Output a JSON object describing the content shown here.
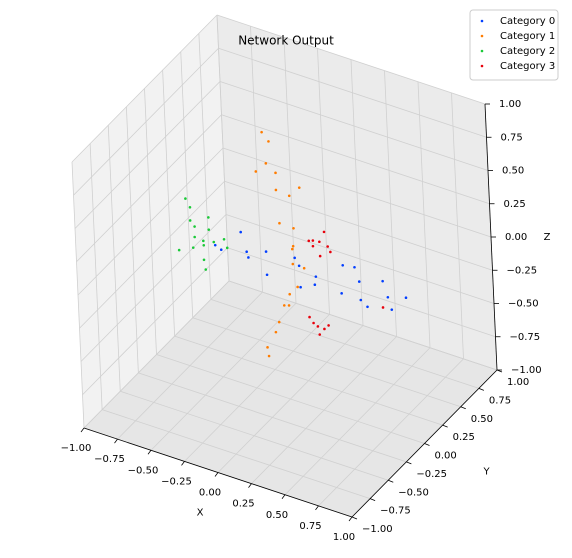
{
  "chart_data": {
    "type": "scatter3d",
    "title": "Network Output",
    "xlabel": "X",
    "ylabel": "Y",
    "zlabel": "Z",
    "xlim": [
      -1,
      1
    ],
    "ylim": [
      -1,
      1
    ],
    "zlim": [
      -1,
      1
    ],
    "xticks": [
      {
        "value": -1,
        "label": "−1.00"
      },
      {
        "value": -0.75,
        "label": "−0.75"
      },
      {
        "value": -0.5,
        "label": "−0.50"
      },
      {
        "value": -0.25,
        "label": "−0.25"
      },
      {
        "value": 0,
        "label": "0.00"
      },
      {
        "value": 0.25,
        "label": "0.25"
      },
      {
        "value": 0.5,
        "label": "0.50"
      },
      {
        "value": 0.75,
        "label": "0.75"
      },
      {
        "value": 1,
        "label": "1.00"
      }
    ],
    "yticks": [
      {
        "value": -1,
        "label": "−1.00"
      },
      {
        "value": -0.75,
        "label": "−0.75"
      },
      {
        "value": -0.5,
        "label": "−0.50"
      },
      {
        "value": -0.25,
        "label": "−0.25"
      },
      {
        "value": 0,
        "label": "0.00"
      },
      {
        "value": 0.25,
        "label": "0.25"
      },
      {
        "value": 0.5,
        "label": "0.50"
      },
      {
        "value": 0.75,
        "label": "0.75"
      },
      {
        "value": 1,
        "label": "1.00"
      }
    ],
    "zticks": [
      {
        "value": -1,
        "label": "−1.00"
      },
      {
        "value": -0.75,
        "label": "−0.75"
      },
      {
        "value": -0.5,
        "label": "−0.50"
      },
      {
        "value": -0.25,
        "label": "−0.25"
      },
      {
        "value": 0,
        "label": "0.00"
      },
      {
        "value": 0.25,
        "label": "0.25"
      },
      {
        "value": 0.5,
        "label": "0.50"
      },
      {
        "value": 0.75,
        "label": "0.75"
      },
      {
        "value": 1,
        "label": "1.00"
      }
    ],
    "grid": true,
    "legend": "upper right",
    "series": [
      {
        "name": "Category 0",
        "color": "#023eff",
        "x": [
          -0.69,
          -0.6,
          -0.5,
          -0.42,
          -0.33,
          -0.25,
          -0.15,
          -0.05,
          0.05,
          0.12,
          0.2,
          0.28,
          0.36,
          0.44,
          0.52,
          0.6,
          0.66,
          0.72,
          -0.55,
          0.0,
          0.3,
          0.5
        ],
        "y": [
          0.3,
          0.22,
          0.38,
          0.26,
          0.34,
          0.2,
          0.4,
          0.28,
          0.32,
          0.18,
          0.42,
          0.25,
          0.35,
          0.22,
          0.38,
          0.3,
          0.24,
          0.33,
          0.4,
          0.2,
          0.4,
          0.2
        ],
        "z": [
          -0.24,
          -0.2,
          -0.27,
          -0.22,
          -0.19,
          -0.26,
          -0.21,
          -0.17,
          -0.24,
          -0.2,
          -0.16,
          -0.25,
          -0.19,
          -0.23,
          -0.15,
          -0.2,
          -0.24,
          -0.18,
          -0.15,
          -0.27,
          -0.13,
          -0.25
        ]
      },
      {
        "name": "Category 1",
        "color": "#ff7c00",
        "x": [
          -0.3,
          -0.28,
          -0.25,
          -0.22,
          -0.2,
          -0.17,
          -0.15,
          -0.12,
          -0.1,
          -0.08,
          -0.07,
          -0.08,
          -0.13,
          -0.18,
          -0.22,
          -0.26,
          -0.3,
          -0.32,
          -0.12,
          -0.05,
          -0.2,
          -0.3
        ],
        "y": [
          0.3,
          0.35,
          0.25,
          0.32,
          0.28,
          0.4,
          0.22,
          0.35,
          0.3,
          0.25,
          0.38,
          0.3,
          0.2,
          0.35,
          0.28,
          0.3,
          0.25,
          0.3,
          0.45,
          0.2,
          0.4,
          0.2
        ],
        "z": [
          0.74,
          0.65,
          0.55,
          0.45,
          0.35,
          0.25,
          0.15,
          0.05,
          -0.05,
          -0.15,
          -0.25,
          -0.35,
          -0.45,
          -0.55,
          -0.65,
          -0.75,
          -0.85,
          -0.95,
          0.3,
          0.0,
          -0.5,
          0.5
        ]
      },
      {
        "name": "Category 2",
        "color": "#1ac938",
        "x": [
          -0.9,
          -0.88,
          -0.86,
          -0.84,
          -0.82,
          -0.8,
          -0.78,
          -0.77,
          -0.85,
          -0.8,
          -0.75,
          -0.7,
          -0.65,
          -0.6,
          -0.82,
          -0.79
        ],
        "y": [
          0.3,
          0.32,
          0.28,
          0.3,
          0.26,
          0.34,
          0.3,
          0.3,
          0.1,
          0.2,
          0.25,
          0.3,
          0.35,
          0.3,
          0.45,
          0.4
        ],
        "z": [
          0.04,
          -0.03,
          -0.1,
          -0.15,
          -0.2,
          -0.3,
          -0.38,
          -0.45,
          -0.22,
          -0.24,
          -0.2,
          -0.22,
          -0.21,
          -0.23,
          -0.25,
          -0.12
        ]
      },
      {
        "name": "Category 3",
        "color": "#e8000b",
        "x": [
          0.05,
          0.1,
          0.15,
          0.08,
          0.13,
          0.02,
          0.11,
          0.18,
          0.0,
          0.06,
          0.1,
          0.04,
          0.13,
          0.08,
          0.56
        ],
        "y": [
          0.3,
          0.3,
          0.32,
          0.25,
          0.25,
          0.3,
          0.35,
          0.3,
          0.3,
          0.3,
          0.25,
          0.28,
          0.32,
          0.35,
          0.3
        ],
        "z": [
          0.0,
          0.05,
          0.02,
          0.08,
          -0.02,
          0.03,
          0.1,
          0.0,
          -0.55,
          -0.6,
          -0.62,
          -0.57,
          -0.58,
          -0.64,
          -0.29
        ]
      }
    ]
  }
}
